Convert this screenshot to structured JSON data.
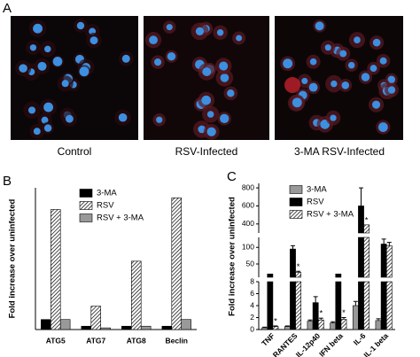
{
  "panel_a": {
    "panel_label": "A",
    "captions": [
      "Control",
      "RSV-Infected",
      "3-MA RSV-Infected"
    ]
  },
  "chart_data": [
    {
      "type": "bar",
      "panel_label": "B",
      "y_label": "Fold increase over uninfected",
      "categories": [
        "ATG5",
        "ATG7",
        "ATG8",
        "Beclin"
      ],
      "series": [
        {
          "name": "3-MA",
          "color": "#000000",
          "values": [
            0.6,
            0.2,
            0.2,
            0.2
          ]
        },
        {
          "name": "RSV",
          "color": "#ffffff",
          "hatch": true,
          "values": [
            7.2,
            1.4,
            4.1,
            7.9
          ]
        },
        {
          "name": "RSV + 3-MA",
          "color": "#999999",
          "values": [
            0.6,
            0.1,
            0.2,
            0.6
          ]
        }
      ],
      "ylim": [
        0,
        8.5
      ]
    },
    {
      "type": "bar",
      "panel_label": "C",
      "y_label": "Fold increase over uninfected",
      "categories": [
        "TNF",
        "RANTES",
        "IL-12p40",
        "IFN beta",
        "IL-6",
        "IL-1 beta"
      ],
      "series": [
        {
          "name": "3-MA",
          "color": "#999999",
          "values": [
            0.3,
            0.5,
            1.4,
            1.1,
            4.0,
            1.5
          ],
          "errors": [
            0.1,
            0.1,
            0.2,
            0.2,
            0.7,
            0.3
          ]
        },
        {
          "name": "RSV",
          "color": "#000000",
          "values": [
            20,
            95,
            4.5,
            20,
            600,
            110
          ],
          "errors": [
            null,
            10,
            1.0,
            null,
            200,
            15
          ]
        },
        {
          "name": "RSV + 3-MA",
          "color": "#ffffff",
          "hatch": true,
          "values": [
            0.5,
            25,
            1.6,
            1.7,
            390,
            105
          ],
          "errors": [
            0.1,
            3,
            0.3,
            0.3,
            null,
            10
          ]
        }
      ],
      "segments": [
        {
          "ylim": [
            0,
            8
          ],
          "yticks": [
            0,
            2,
            4,
            6,
            8
          ]
        },
        {
          "ylim": [
            10,
            130
          ],
          "yticks": [
            50,
            100
          ]
        },
        {
          "ylim": [
            300,
            850
          ],
          "yticks": [
            400,
            600,
            800
          ]
        }
      ],
      "annotations": [
        {
          "text": "*",
          "category": "TNF"
        },
        {
          "text": "*",
          "category": "RANTES"
        },
        {
          "text": "*",
          "category": "IL-12p40"
        },
        {
          "text": "*",
          "category": "IFN beta"
        },
        {
          "text": "*",
          "category": "IL-6"
        }
      ]
    }
  ]
}
